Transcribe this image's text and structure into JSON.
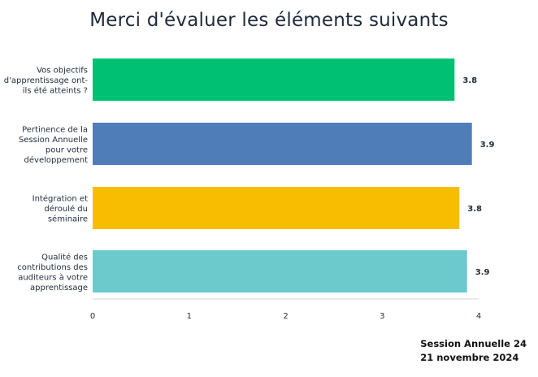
{
  "chart_data": {
    "type": "bar",
    "orientation": "horizontal",
    "title": "Merci d'évaluer les éléments suivants",
    "categories": [
      [
        "Vos objectifs",
        "d'apprentissage ont-",
        "ils été atteints ?"
      ],
      [
        "Pertinence de la",
        "Session Annuelle",
        "pour votre",
        "développement"
      ],
      [
        "Intégration et",
        "déroulé du",
        "séminaire"
      ],
      [
        "Qualité des",
        "contributions des",
        "auditeurs à votre",
        "apprentissage"
      ]
    ],
    "values": [
      3.75,
      3.93,
      3.8,
      3.88
    ],
    "value_labels": [
      "3.8",
      "3.9",
      "3.8",
      "3.9"
    ],
    "colors": [
      "#00c073",
      "#4f7db8",
      "#f8bd00",
      "#6ccacd"
    ],
    "xlim": [
      0,
      4
    ],
    "xticks": [
      "0",
      "1",
      "2",
      "3",
      "4"
    ],
    "grid": false,
    "legend": "none"
  },
  "footer": {
    "line1": "Session Annuelle 24",
    "line2": "21 novembre 2024"
  }
}
